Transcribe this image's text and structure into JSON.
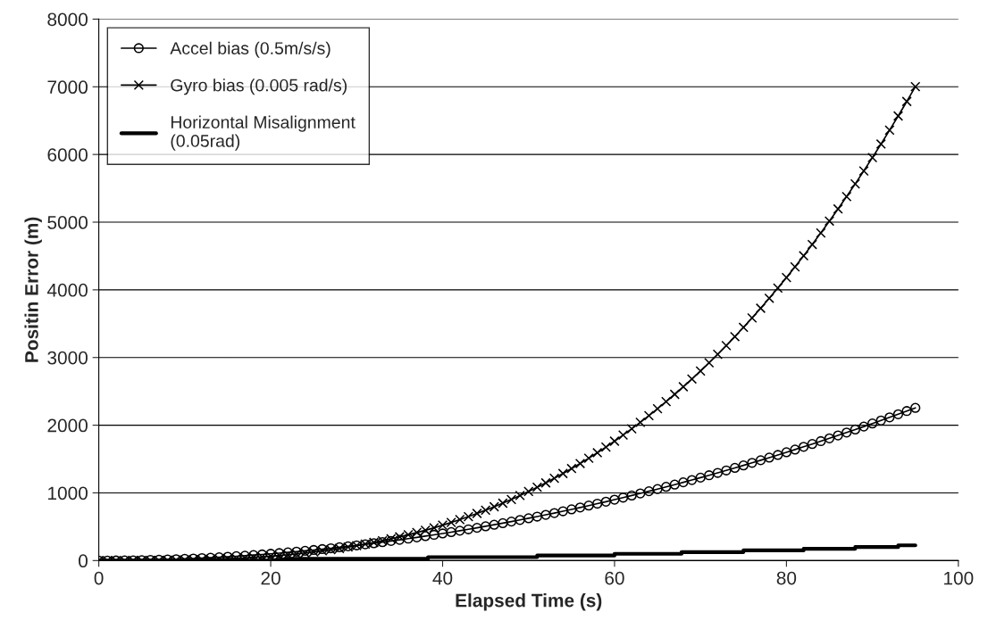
{
  "chart_data": {
    "type": "line",
    "xlabel": "Elapsed Time (s)",
    "ylabel": "Positin Error (m)",
    "xlim": [
      0,
      100
    ],
    "xticks": [
      0,
      20,
      40,
      60,
      80,
      100
    ],
    "ylim": [
      0,
      8000
    ],
    "yticks": [
      0,
      1000,
      2000,
      3000,
      4000,
      5000,
      6000,
      7000,
      8000
    ],
    "grid": "y",
    "legend": "top left",
    "series": [
      {
        "name": "Accel bias (0.5m/s/s)",
        "color": "#000000",
        "marker": "circle",
        "x": [
          0,
          1,
          2,
          3,
          4,
          5,
          6,
          7,
          8,
          9,
          10,
          11,
          12,
          13,
          14,
          15,
          16,
          17,
          18,
          19,
          20,
          21,
          22,
          23,
          24,
          25,
          26,
          27,
          28,
          29,
          30,
          31,
          32,
          33,
          34,
          35,
          36,
          37,
          38,
          39,
          40,
          41,
          42,
          43,
          44,
          45,
          46,
          47,
          48,
          49,
          50,
          51,
          52,
          53,
          54,
          55,
          56,
          57,
          58,
          59,
          60,
          61,
          62,
          63,
          64,
          65,
          66,
          67,
          68,
          69,
          70,
          71,
          72,
          73,
          74,
          75,
          76,
          77,
          78,
          79,
          80,
          81,
          82,
          83,
          84,
          85,
          86,
          87,
          88,
          89,
          90,
          91,
          92,
          93,
          94,
          95
        ],
        "values": [
          0,
          0,
          1,
          2,
          4,
          6,
          9,
          12,
          16,
          20,
          25,
          30,
          36,
          42,
          49,
          56,
          64,
          72,
          81,
          90,
          100,
          110,
          121,
          132,
          144,
          156,
          169,
          182,
          196,
          210,
          225,
          240,
          256,
          272,
          289,
          306,
          324,
          342,
          361,
          380,
          400,
          420,
          441,
          462,
          484,
          506,
          529,
          552,
          576,
          600,
          625,
          650,
          676,
          702,
          729,
          756,
          784,
          812,
          841,
          870,
          900,
          930,
          961,
          992,
          1024,
          1056,
          1089,
          1122,
          1156,
          1190,
          1225,
          1260,
          1296,
          1332,
          1369,
          1406,
          1444,
          1482,
          1521,
          1560,
          1600,
          1640,
          1681,
          1722,
          1764,
          1806,
          1849,
          1892,
          1936,
          1980,
          2025,
          2070,
          2116,
          2162,
          2209,
          2256
        ]
      },
      {
        "name": "Gyro bias (0.005 rad/s)",
        "color": "#000000",
        "marker": "cross",
        "x": [
          0,
          1,
          2,
          3,
          4,
          5,
          6,
          7,
          8,
          9,
          10,
          11,
          12,
          13,
          14,
          15,
          16,
          17,
          18,
          19,
          20,
          21,
          22,
          23,
          24,
          25,
          26,
          27,
          28,
          29,
          30,
          31,
          32,
          33,
          34,
          35,
          36,
          37,
          38,
          39,
          40,
          41,
          42,
          43,
          44,
          45,
          46,
          47,
          48,
          49,
          50,
          51,
          52,
          53,
          54,
          55,
          56,
          57,
          58,
          59,
          60,
          61,
          62,
          63,
          64,
          65,
          66,
          67,
          68,
          69,
          70,
          71,
          72,
          73,
          74,
          75,
          76,
          77,
          78,
          79,
          80,
          81,
          82,
          83,
          84,
          85,
          86,
          87,
          88,
          89,
          90,
          91,
          92,
          93,
          94,
          95
        ],
        "values": [
          0,
          0,
          0,
          0,
          1,
          1,
          2,
          3,
          4,
          6,
          8,
          11,
          14,
          18,
          22,
          28,
          33,
          40,
          48,
          56,
          65,
          76,
          87,
          99,
          113,
          128,
          144,
          161,
          179,
          199,
          221,
          243,
          268,
          293,
          321,
          350,
          381,
          414,
          448,
          484,
          523,
          563,
          605,
          649,
          696,
          744,
          795,
          848,
          903,
          961,
          1021,
          1083,
          1148,
          1216,
          1286,
          1359,
          1434,
          1512,
          1593,
          1677,
          1764,
          1854,
          1946,
          2042,
          2141,
          2243,
          2348,
          2456,
          2568,
          2683,
          2801,
          2923,
          3048,
          3177,
          3309,
          3445,
          3585,
          3728,
          3876,
          4027,
          4181,
          4340,
          4503,
          4670,
          4841,
          5016,
          5195,
          5378,
          5565,
          5757,
          5954,
          6154,
          6359,
          6569,
          6783,
          7002
        ]
      },
      {
        "name": "Horizontal Misalignment\n(0.05rad)",
        "color": "#000000",
        "marker": "none",
        "x": [
          0,
          20,
          22,
          38.3,
          38.3,
          51,
          51,
          60,
          60,
          67.8,
          67.8,
          75,
          75,
          82,
          82,
          88,
          88,
          93,
          93,
          95
        ],
        "values": [
          0,
          0,
          25,
          25,
          50,
          50,
          75,
          75,
          100,
          100,
          125,
          125,
          150,
          150,
          175,
          175,
          200,
          200,
          225,
          225
        ]
      }
    ]
  }
}
